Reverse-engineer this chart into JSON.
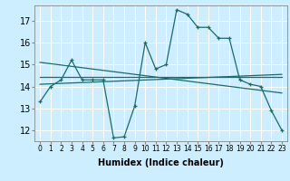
{
  "title": "",
  "xlabel": "Humidex (Indice chaleur)",
  "background_color": "#cceeff",
  "grid_color": "#ffffff",
  "line_color": "#1a6b6b",
  "xlim": [
    -0.5,
    23.5
  ],
  "ylim": [
    11.5,
    17.7
  ],
  "yticks": [
    12,
    13,
    14,
    15,
    16,
    17
  ],
  "xticks": [
    0,
    1,
    2,
    3,
    4,
    5,
    6,
    7,
    8,
    9,
    10,
    11,
    12,
    13,
    14,
    15,
    16,
    17,
    18,
    19,
    20,
    21,
    22,
    23
  ],
  "xtick_labels": [
    "0",
    "1",
    "2",
    "3",
    "4",
    "5",
    "6",
    "7",
    "8",
    "9",
    "10",
    "11",
    "12",
    "13",
    "14",
    "15",
    "16",
    "17",
    "18",
    "19",
    "20",
    "21",
    "22",
    "23"
  ],
  "series1_x": [
    0,
    1,
    2,
    3,
    4,
    5,
    6,
    7,
    8,
    9,
    10,
    11,
    12,
    13,
    14,
    15,
    16,
    17,
    18,
    19,
    20,
    21,
    22,
    23
  ],
  "series1_y": [
    13.3,
    14.0,
    14.3,
    15.2,
    14.3,
    14.3,
    14.3,
    11.65,
    11.7,
    13.1,
    16.0,
    14.8,
    15.0,
    17.5,
    17.3,
    16.7,
    16.7,
    16.2,
    16.2,
    14.3,
    14.1,
    14.0,
    12.9,
    12.0
  ],
  "series2_x": [
    0,
    23
  ],
  "series2_y": [
    14.45,
    14.45
  ],
  "series3_x": [
    0,
    23
  ],
  "series3_y": [
    15.1,
    13.7
  ],
  "series4_x": [
    0,
    23
  ],
  "series4_y": [
    14.1,
    14.55
  ],
  "font_size_xlabel": 7,
  "font_size_ytick": 7,
  "font_size_xtick": 5.5
}
